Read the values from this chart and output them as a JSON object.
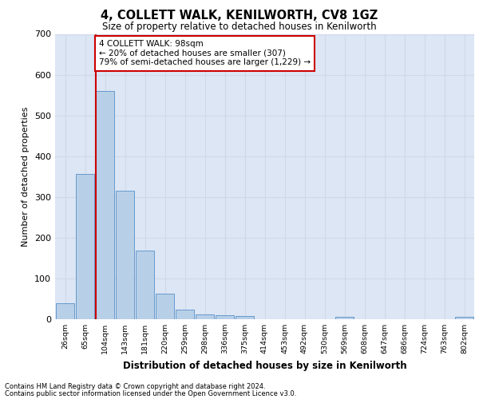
{
  "title1": "4, COLLETT WALK, KENILWORTH, CV8 1GZ",
  "title2": "Size of property relative to detached houses in Kenilworth",
  "xlabel": "Distribution of detached houses by size in Kenilworth",
  "ylabel": "Number of detached properties",
  "footnote1": "Contains HM Land Registry data © Crown copyright and database right 2024.",
  "footnote2": "Contains public sector information licensed under the Open Government Licence v3.0.",
  "bin_labels": [
    "26sqm",
    "65sqm",
    "104sqm",
    "143sqm",
    "181sqm",
    "220sqm",
    "259sqm",
    "298sqm",
    "336sqm",
    "375sqm",
    "414sqm",
    "453sqm",
    "492sqm",
    "530sqm",
    "569sqm",
    "608sqm",
    "647sqm",
    "686sqm",
    "724sqm",
    "763sqm",
    "802sqm"
  ],
  "bar_values": [
    40,
    357,
    560,
    315,
    168,
    62,
    23,
    12,
    10,
    7,
    0,
    0,
    0,
    0,
    6,
    0,
    0,
    0,
    0,
    0,
    6
  ],
  "bar_color": "#b8cfe8",
  "bar_edge_color": "#6699cc",
  "vline_color": "#cc0000",
  "vline_x_index": 2,
  "annotation_text_line1": "4 COLLETT WALK: 98sqm",
  "annotation_text_line2": "← 20% of detached houses are smaller (307)",
  "annotation_text_line3": "79% of semi-detached houses are larger (1,229) →",
  "annotation_box_color": "#ffffff",
  "annotation_box_edge_color": "#cc0000",
  "ylim": [
    0,
    700
  ],
  "yticks": [
    0,
    100,
    200,
    300,
    400,
    500,
    600,
    700
  ],
  "grid_color": "#d0d8e8",
  "bg_color": "#dce6f5",
  "fig_width": 6.0,
  "fig_height": 5.0,
  "dpi": 100
}
